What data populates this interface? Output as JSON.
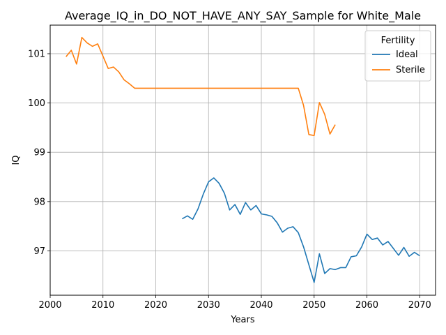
{
  "chart_data": {
    "type": "line",
    "title": "Average_IQ_in_DO_NOT_HAVE_ANY_SAY_Sample for White_Male",
    "xlabel": "Years",
    "ylabel": "IQ",
    "xlim": [
      2000,
      2073
    ],
    "ylim": [
      96.1,
      101.58
    ],
    "xticks": [
      2000,
      2010,
      2020,
      2030,
      2040,
      2050,
      2060,
      2070
    ],
    "yticks": [
      97,
      98,
      99,
      100,
      101
    ],
    "grid": true,
    "legend": {
      "title": "Fertility",
      "position": "top-right"
    },
    "series": [
      {
        "name": "Ideal",
        "color": "#1f77b4",
        "x": [
          2025,
          2026,
          2027,
          2028,
          2029,
          2030,
          2031,
          2032,
          2033,
          2034,
          2035,
          2036,
          2037,
          2038,
          2039,
          2040,
          2041,
          2042,
          2043,
          2044,
          2045,
          2046,
          2047,
          2048,
          2049,
          2050,
          2051,
          2052,
          2053,
          2054,
          2055,
          2056,
          2057,
          2058,
          2059,
          2060,
          2061,
          2062,
          2063,
          2064,
          2065,
          2066,
          2067,
          2068,
          2069,
          2070
        ],
        "y": [
          97.65,
          97.71,
          97.64,
          97.85,
          98.15,
          98.4,
          98.48,
          98.37,
          98.17,
          97.83,
          97.94,
          97.74,
          97.98,
          97.83,
          97.92,
          97.75,
          97.73,
          97.7,
          97.57,
          97.38,
          97.46,
          97.49,
          97.37,
          97.08,
          96.72,
          96.36,
          96.94,
          96.54,
          96.64,
          96.62,
          96.66,
          96.66,
          96.88,
          96.9,
          97.08,
          97.34,
          97.23,
          97.26,
          97.12,
          97.19,
          97.05,
          96.91,
          97.07,
          96.89,
          96.97,
          96.9
        ]
      },
      {
        "name": "Sterile",
        "color": "#ff7f0e",
        "x": [
          2003,
          2004,
          2005,
          2006,
          2007,
          2008,
          2009,
          2010,
          2011,
          2012,
          2013,
          2014,
          2015,
          2016,
          2017,
          2018,
          2019,
          2020,
          2021,
          2022,
          2023,
          2024,
          2025,
          2026,
          2027,
          2028,
          2029,
          2030,
          2031,
          2032,
          2033,
          2034,
          2035,
          2036,
          2037,
          2038,
          2039,
          2040,
          2041,
          2042,
          2043,
          2044,
          2045,
          2046,
          2047,
          2048,
          2049,
          2050,
          2051,
          2052,
          2053,
          2054
        ],
        "y": [
          100.94,
          101.07,
          100.79,
          101.33,
          101.22,
          101.15,
          101.2,
          100.95,
          100.7,
          100.73,
          100.63,
          100.47,
          100.39,
          100.3,
          100.3,
          100.3,
          100.3,
          100.3,
          100.3,
          100.3,
          100.3,
          100.3,
          100.3,
          100.3,
          100.3,
          100.3,
          100.3,
          100.3,
          100.3,
          100.3,
          100.3,
          100.3,
          100.3,
          100.3,
          100.3,
          100.3,
          100.3,
          100.3,
          100.3,
          100.3,
          100.3,
          100.3,
          100.3,
          100.3,
          100.3,
          99.95,
          99.36,
          99.34,
          100.01,
          99.77,
          99.37,
          99.56
        ]
      }
    ]
  }
}
